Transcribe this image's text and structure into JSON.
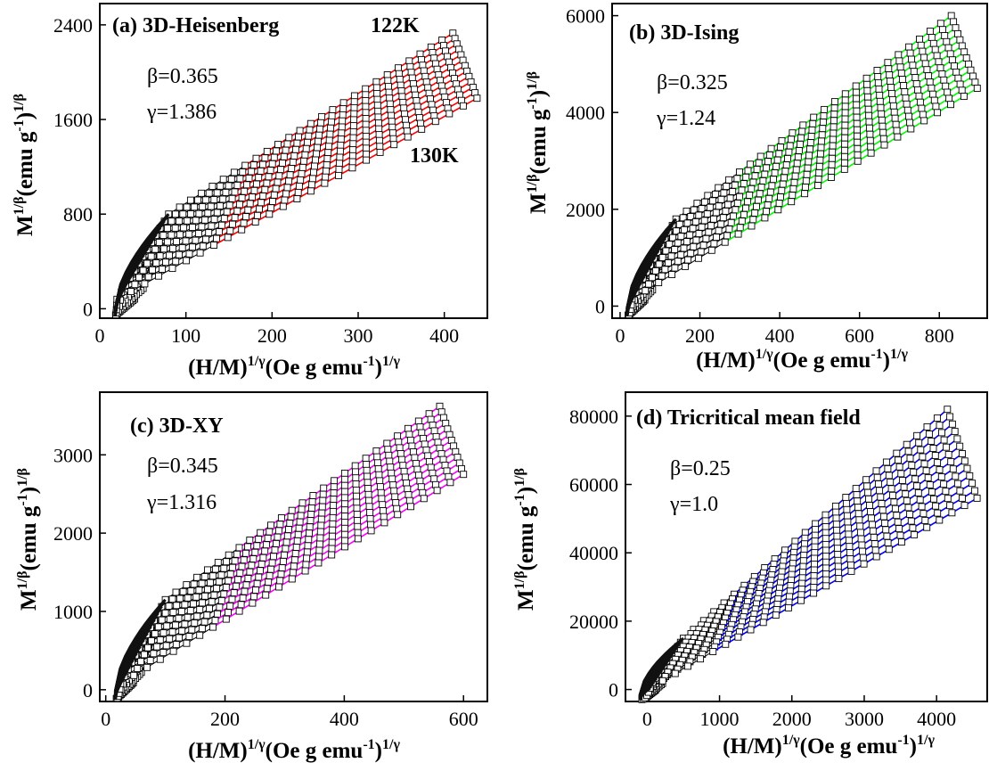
{
  "chart_data": [
    {
      "type": "scatter",
      "title": "(a) 3D-Heisenberg",
      "params": {
        "beta": "β=0.365",
        "gamma": "γ=1.386"
      },
      "annotations": [
        {
          "text": "122K",
          "x": 430,
          "y": 2380
        },
        {
          "text": "130K",
          "x": 440,
          "y": 1160
        }
      ],
      "xlabel": "(H/M)^(1/γ)(Oe g emu^-1)^(1/γ)",
      "ylabel": "M^(1/β)(emu g^-1)^(1/β)",
      "xlim": [
        0,
        450
      ],
      "ylim": [
        -80,
        2580
      ],
      "xticks": [
        0,
        100,
        200,
        300,
        400
      ],
      "yticks": [
        0,
        800,
        1600,
        2400
      ],
      "curves": 13,
      "curve_top_start": {
        "x": 80,
        "y": 800
      },
      "curve_top_end": {
        "x": 410,
        "y": 2330
      },
      "curve_bottom_start": {
        "x": 20,
        "y": 80
      },
      "curve_bottom_end": {
        "x": 438,
        "y": 1780
      },
      "low_field_end_x": {
        "top": 80,
        "bottom": 20
      },
      "colored_from_x": {
        "top": 160,
        "bottom": 130
      },
      "highlight_color": "#ff0000"
    },
    {
      "type": "scatter",
      "title": "(b) 3D-Ising",
      "params": {
        "beta": "β=0.325",
        "gamma": "γ=1.24"
      },
      "annotations": [],
      "xlabel": "(H/M)^(1/γ)(Oe g emu^-1)^(1/γ)",
      "ylabel": "M^(1/β)(emu g^-1)^(1/β)",
      "xlim": [
        -20,
        920
      ],
      "ylim": [
        -250,
        6250
      ],
      "xticks": [
        0,
        200,
        400,
        600,
        800
      ],
      "yticks": [
        0,
        2000,
        4000,
        6000
      ],
      "curves": 13,
      "curve_top_start": {
        "x": 140,
        "y": 1800
      },
      "curve_top_end": {
        "x": 830,
        "y": 6000
      },
      "curve_bottom_start": {
        "x": 30,
        "y": 150
      },
      "curve_bottom_end": {
        "x": 895,
        "y": 4500
      },
      "low_field_end_x": {
        "top": 140,
        "bottom": 30
      },
      "colored_from_x": {
        "top": 290,
        "bottom": 250
      },
      "highlight_color": "#00ff00"
    },
    {
      "type": "scatter",
      "title": "(c)  3D-XY",
      "params": {
        "beta": "β=0.345",
        "gamma": "γ=1.316"
      },
      "annotations": [],
      "xlabel": "(H/M)^(1/γ)(Oe g emu^-1)^(1/γ)",
      "ylabel": "M^(1/β)(emu g^-1)^(1/β)",
      "xlim": [
        -10,
        640
      ],
      "ylim": [
        -150,
        3800
      ],
      "xticks": [
        0,
        200,
        400,
        600
      ],
      "yticks": [
        0,
        1000,
        2000,
        3000
      ],
      "curves": 13,
      "curve_top_start": {
        "x": 100,
        "y": 1150
      },
      "curve_top_end": {
        "x": 560,
        "y": 3620
      },
      "curve_bottom_start": {
        "x": 25,
        "y": 80
      },
      "curve_bottom_end": {
        "x": 600,
        "y": 2750
      },
      "low_field_end_x": {
        "top": 100,
        "bottom": 25
      },
      "colored_from_x": {
        "top": 210,
        "bottom": 175
      },
      "highlight_color": "#ff00ff"
    },
    {
      "type": "scatter",
      "title": "(d) Tricritical mean field",
      "params": {
        "beta": "β=0.25",
        "gamma": "γ=1.0"
      },
      "annotations": [],
      "xlabel": "(H/M)^(1/γ)(Oe g emu^-1)^(1/γ)",
      "ylabel": "M^(1/β)(emu g^-1)^(1/β)",
      "xlim": [
        -300,
        4700
      ],
      "ylim": [
        -3500,
        87000
      ],
      "xticks": [
        0,
        1000,
        2000,
        3000,
        4000
      ],
      "yticks": [
        0,
        20000,
        40000,
        60000,
        80000
      ],
      "curves": 13,
      "curve_top_start": {
        "x": 500,
        "y": 15000
      },
      "curve_top_end": {
        "x": 4150,
        "y": 82000
      },
      "curve_bottom_start": {
        "x": 40,
        "y": 400
      },
      "curve_bottom_end": {
        "x": 4560,
        "y": 56000
      },
      "low_field_end_x": {
        "top": 500,
        "bottom": 40
      },
      "colored_from_x": {
        "top": 1100,
        "bottom": 900
      },
      "highlight_color": "#0000ff"
    }
  ]
}
